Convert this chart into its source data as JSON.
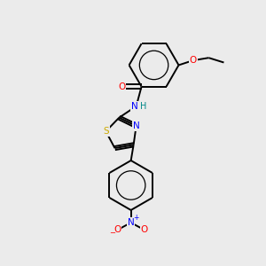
{
  "bg_color": "#ebebeb",
  "bond_color": "#000000",
  "atom_colors": {
    "O": "#ff0000",
    "N": "#0000ff",
    "S": "#ccaa00",
    "H": "#008888"
  },
  "bond_lw": 1.4,
  "font_size": 7.5
}
